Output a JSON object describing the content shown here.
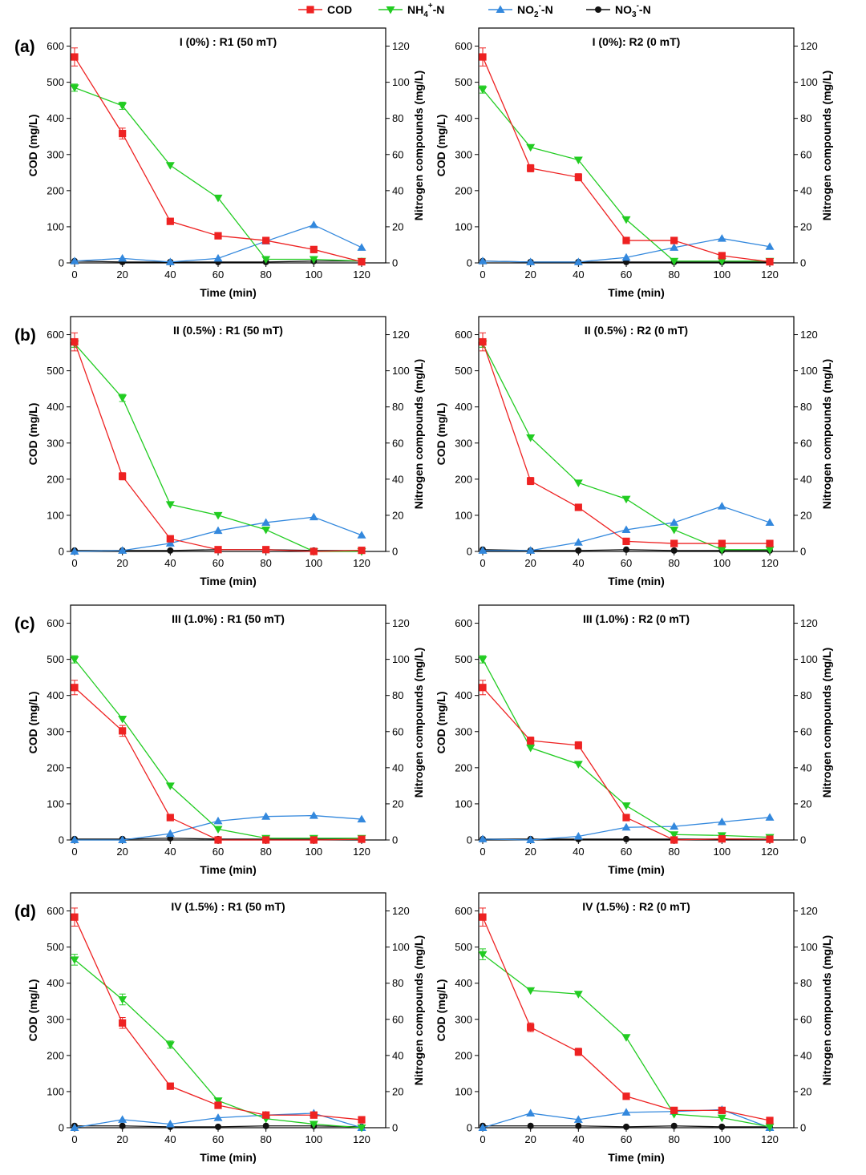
{
  "legend": [
    {
      "series": "cod",
      "main": "COD",
      "sub": "",
      "sup": "",
      "tail": "",
      "color": "#ee2222",
      "marker": "square"
    },
    {
      "series": "nh4",
      "main": "NH",
      "sub": "4",
      "sup": "+",
      "tail": "-N",
      "color": "#22cc22",
      "marker": "tri-down"
    },
    {
      "series": "no2",
      "main": "NO",
      "sub": "2",
      "sup": "-",
      "tail": "-N",
      "color": "#3388dd",
      "marker": "tri-up"
    },
    {
      "series": "no3",
      "main": "NO",
      "sub": "3",
      "sup": "-",
      "tail": "-N",
      "color": "#111111",
      "marker": "circle"
    }
  ],
  "axes_text": {
    "xlabel": "Time (min)",
    "ylabel_left": "COD (mg/L)",
    "ylabel_right": "Nitrogen compounds (mg/L)"
  },
  "chart_data": [
    {
      "type": "line",
      "panel": "(a)",
      "title": "I (0%) : R1 (50 mT)",
      "x": [
        0,
        20,
        40,
        60,
        80,
        100,
        120
      ],
      "xlim": [
        0,
        120
      ],
      "ylim_left": [
        0,
        650
      ],
      "ylim_right": [
        0,
        130
      ],
      "series": [
        {
          "name": "COD",
          "axis": "left",
          "values": [
            570,
            358,
            115,
            75,
            62,
            37,
            3
          ],
          "err": [
            25,
            15,
            0,
            0,
            0,
            0,
            0
          ]
        },
        {
          "name": "NH4+-N",
          "axis": "right",
          "values": [
            97,
            87,
            54,
            36,
            2,
            2,
            1
          ],
          "err": [
            2,
            2,
            0,
            0,
            0,
            0,
            0
          ]
        },
        {
          "name": "NO2--N",
          "axis": "right",
          "values": [
            1,
            2.5,
            0.5,
            2.5,
            12,
            21,
            8.5
          ],
          "err": [
            0,
            0,
            0,
            0,
            0,
            0,
            0
          ]
        },
        {
          "name": "NO3--N",
          "axis": "right",
          "values": [
            1,
            0.5,
            0.5,
            0.5,
            0.5,
            1,
            1
          ],
          "err": [
            0,
            0,
            0,
            0,
            0,
            0,
            0
          ]
        }
      ]
    },
    {
      "type": "line",
      "panel": "",
      "title": "I (0%): R2 (0 mT)",
      "x": [
        0,
        20,
        40,
        60,
        80,
        100,
        120
      ],
      "xlim": [
        0,
        120
      ],
      "ylim_left": [
        0,
        650
      ],
      "ylim_right": [
        0,
        130
      ],
      "series": [
        {
          "name": "COD",
          "axis": "left",
          "values": [
            570,
            262,
            237,
            62,
            62,
            20,
            3
          ],
          "err": [
            25,
            10,
            10,
            0,
            0,
            0,
            0
          ]
        },
        {
          "name": "NH4+-N",
          "axis": "right",
          "values": [
            96,
            64,
            57,
            24,
            1,
            1,
            1
          ],
          "err": [
            2,
            0,
            0,
            0,
            0,
            0,
            0
          ]
        },
        {
          "name": "NO2--N",
          "axis": "right",
          "values": [
            1,
            0.5,
            0.5,
            3,
            8.5,
            13.5,
            9
          ],
          "err": [
            0,
            0,
            0,
            0,
            0,
            0,
            0
          ]
        },
        {
          "name": "NO3--N",
          "axis": "right",
          "values": [
            1,
            0.5,
            0.5,
            0.5,
            0.5,
            0.5,
            0.5
          ],
          "err": [
            0,
            0,
            0,
            0,
            0,
            0,
            0
          ]
        }
      ]
    },
    {
      "type": "line",
      "panel": "(b)",
      "title": "II (0.5%) : R1 (50 mT)",
      "x": [
        0,
        20,
        40,
        60,
        80,
        100,
        120
      ],
      "xlim": [
        0,
        120
      ],
      "ylim_left": [
        0,
        650
      ],
      "ylim_right": [
        0,
        130
      ],
      "series": [
        {
          "name": "COD",
          "axis": "left",
          "values": [
            580,
            208,
            35,
            5,
            5,
            0,
            3
          ],
          "err": [
            25,
            10,
            0,
            0,
            0,
            0,
            0
          ]
        },
        {
          "name": "NH4+-N",
          "axis": "right",
          "values": [
            115,
            85,
            26,
            20,
            12,
            0,
            0
          ],
          "err": [
            2,
            2,
            0,
            0,
            0,
            0,
            0
          ]
        },
        {
          "name": "NO2--N",
          "axis": "right",
          "values": [
            0,
            0.5,
            4.5,
            11.5,
            16,
            19,
            9
          ],
          "err": [
            0,
            0,
            0,
            0,
            0,
            0,
            0
          ]
        },
        {
          "name": "NO3--N",
          "axis": "right",
          "values": [
            0.5,
            0.5,
            0.5,
            1,
            1,
            0.5,
            0.5
          ],
          "err": [
            0,
            0,
            0,
            0,
            0,
            0,
            0
          ]
        }
      ]
    },
    {
      "type": "line",
      "panel": "",
      "title": "II (0.5%) : R2 (0 mT)",
      "x": [
        0,
        20,
        40,
        60,
        80,
        100,
        120
      ],
      "xlim": [
        0,
        120
      ],
      "ylim_left": [
        0,
        650
      ],
      "ylim_right": [
        0,
        130
      ],
      "series": [
        {
          "name": "COD",
          "axis": "left",
          "values": [
            580,
            195,
            122,
            28,
            22,
            22,
            22
          ],
          "err": [
            25,
            10,
            0,
            0,
            0,
            0,
            0
          ]
        },
        {
          "name": "NH4+-N",
          "axis": "right",
          "values": [
            115,
            63,
            38,
            29,
            12,
            1,
            1
          ],
          "err": [
            2,
            0,
            0,
            0,
            0,
            0,
            0
          ]
        },
        {
          "name": "NO2--N",
          "axis": "right",
          "values": [
            0.5,
            0.5,
            5,
            12,
            16,
            25,
            16
          ],
          "err": [
            0,
            0,
            0,
            0,
            0,
            0,
            0
          ]
        },
        {
          "name": "NO3--N",
          "axis": "right",
          "values": [
            1,
            0.5,
            0.5,
            1,
            0.5,
            0.5,
            0.5
          ],
          "err": [
            0,
            0,
            0,
            0,
            0,
            0,
            0
          ]
        }
      ]
    },
    {
      "type": "line",
      "panel": "(c)",
      "title": "III (1.0%) : R1 (50 mT)",
      "x": [
        0,
        20,
        40,
        60,
        80,
        100,
        120
      ],
      "xlim": [
        0,
        120
      ],
      "ylim_left": [
        0,
        650
      ],
      "ylim_right": [
        0,
        130
      ],
      "series": [
        {
          "name": "COD",
          "axis": "left",
          "values": [
            422,
            302,
            62,
            0,
            0,
            0,
            2
          ],
          "err": [
            20,
            15,
            0,
            0,
            0,
            0,
            0
          ]
        },
        {
          "name": "NH4+-N",
          "axis": "right",
          "values": [
            100,
            67,
            30,
            6,
            1,
            1,
            1
          ],
          "err": [
            2,
            0,
            0,
            0,
            0,
            0,
            0
          ]
        },
        {
          "name": "NO2--N",
          "axis": "right",
          "values": [
            0,
            0,
            3.5,
            10.5,
            13,
            13.5,
            11.5
          ],
          "err": [
            0,
            0,
            0,
            0,
            0,
            0,
            0
          ]
        },
        {
          "name": "NO3--N",
          "axis": "right",
          "values": [
            0.5,
            0.5,
            1,
            0.5,
            0.5,
            0.5,
            0.5
          ],
          "err": [
            0,
            0,
            0,
            0,
            0,
            0,
            0
          ]
        }
      ]
    },
    {
      "type": "line",
      "panel": "",
      "title": "III (1.0%) : R2 (0 mT)",
      "x": [
        0,
        20,
        40,
        60,
        80,
        100,
        120
      ],
      "xlim": [
        0,
        120
      ],
      "ylim_left": [
        0,
        650
      ],
      "ylim_right": [
        0,
        130
      ],
      "series": [
        {
          "name": "COD",
          "axis": "left",
          "values": [
            422,
            275,
            262,
            62,
            0,
            3,
            2
          ],
          "err": [
            20,
            10,
            10,
            0,
            0,
            0,
            0
          ]
        },
        {
          "name": "NH4+-N",
          "axis": "right",
          "values": [
            100,
            51,
            42,
            19,
            3,
            2.5,
            1.5
          ],
          "err": [
            2,
            0,
            0,
            0,
            0,
            0,
            0
          ]
        },
        {
          "name": "NO2--N",
          "axis": "right",
          "values": [
            0.5,
            0,
            2,
            7,
            7.5,
            10,
            12.5
          ],
          "err": [
            0,
            0,
            0,
            0,
            0,
            0,
            0
          ]
        },
        {
          "name": "NO3--N",
          "axis": "right",
          "values": [
            0.5,
            0.5,
            0.5,
            0.5,
            0.5,
            0.5,
            0.5
          ],
          "err": [
            0,
            0,
            0,
            0,
            0,
            0,
            0
          ]
        }
      ]
    },
    {
      "type": "line",
      "panel": "(d)",
      "title": "IV (1.5%) : R1 (50 mT)",
      "x": [
        0,
        20,
        40,
        60,
        80,
        100,
        120
      ],
      "xlim": [
        0,
        120
      ],
      "ylim_left": [
        0,
        650
      ],
      "ylim_right": [
        0,
        130
      ],
      "series": [
        {
          "name": "COD",
          "axis": "left",
          "values": [
            583,
            290,
            115,
            62,
            35,
            35,
            22
          ],
          "err": [
            25,
            15,
            0,
            0,
            0,
            0,
            0
          ]
        },
        {
          "name": "NH4+-N",
          "axis": "right",
          "values": [
            93,
            71,
            46,
            15,
            5,
            2,
            0
          ],
          "err": [
            3,
            3,
            2,
            0,
            0,
            0,
            0
          ]
        },
        {
          "name": "NO2--N",
          "axis": "right",
          "values": [
            0,
            4.5,
            2,
            5.5,
            7,
            8,
            0
          ],
          "err": [
            0,
            0,
            0,
            0,
            0,
            0,
            0
          ]
        },
        {
          "name": "NO3--N",
          "axis": "right",
          "values": [
            1,
            1,
            0.5,
            0.5,
            1,
            1,
            0.5
          ],
          "err": [
            0,
            0,
            0,
            0,
            0,
            0,
            0
          ]
        }
      ]
    },
    {
      "type": "line",
      "panel": "",
      "title": "IV (1.5%) : R2 (0 mT)",
      "x": [
        0,
        20,
        40,
        60,
        80,
        100,
        120
      ],
      "xlim": [
        0,
        120
      ],
      "ylim_left": [
        0,
        650
      ],
      "ylim_right": [
        0,
        130
      ],
      "series": [
        {
          "name": "COD",
          "axis": "left",
          "values": [
            583,
            278,
            210,
            87,
            48,
            48,
            20
          ],
          "err": [
            25,
            12,
            10,
            0,
            0,
            0,
            0
          ]
        },
        {
          "name": "NH4+-N",
          "axis": "right",
          "values": [
            96,
            76,
            74,
            50,
            7.5,
            5.5,
            0.5
          ],
          "err": [
            3,
            0,
            0,
            0,
            0,
            0,
            0
          ]
        },
        {
          "name": "NO2--N",
          "axis": "right",
          "values": [
            0,
            8,
            4.5,
            8.5,
            9,
            10,
            0
          ],
          "err": [
            0,
            0,
            0,
            0,
            0,
            0,
            0
          ]
        },
        {
          "name": "NO3--N",
          "axis": "right",
          "values": [
            1,
            1,
            1,
            0.5,
            1,
            0.5,
            0.5
          ],
          "err": [
            0,
            0,
            0,
            0,
            0,
            0,
            0
          ]
        }
      ]
    }
  ]
}
